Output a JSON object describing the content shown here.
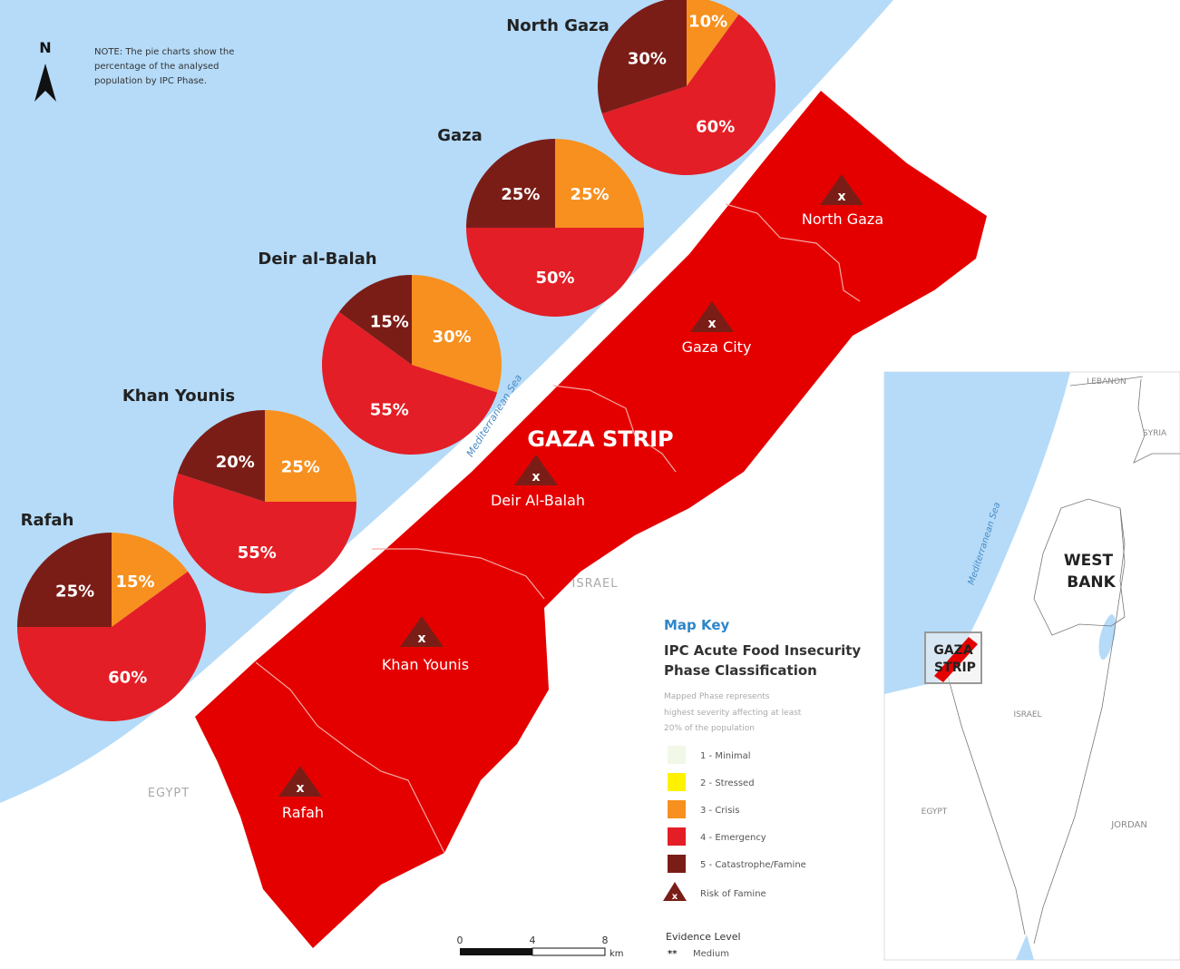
{
  "note_lines": [
    "NOTE: The pie charts show the",
    "percentage of the analysed",
    "population by IPC Phase."
  ],
  "north_label": "N",
  "sea_label": "Mediterranean Sea",
  "strip_title": "GAZA STRIP",
  "neighbors": {
    "egypt": "EGYPT",
    "israel": "ISRAEL"
  },
  "colors": {
    "sea": "#b5dbf9",
    "phase1": "#f2f8e8",
    "phase2": "#fff200",
    "phase3": "#f7901e",
    "phase4": "#e41e26",
    "phase5": "#7b1d17",
    "map_fill": "#e50000",
    "key_title": "#2e86c9"
  },
  "governorates": [
    {
      "name": "North Gaza",
      "label": "North Gaza",
      "risk_of_famine": true
    },
    {
      "name": "Gaza",
      "label": "Gaza City",
      "risk_of_famine": true
    },
    {
      "name": "Deir al-Balah",
      "label": "Deir Al-Balah",
      "risk_of_famine": true
    },
    {
      "name": "Khan Younis",
      "label": "Khan Younis",
      "risk_of_famine": true
    },
    {
      "name": "Rafah",
      "label": "Rafah",
      "risk_of_famine": true
    }
  ],
  "chart_data": [
    {
      "type": "pie",
      "title": "North Gaza",
      "categories": [
        "3 - Crisis",
        "4 - Emergency",
        "5 - Catastrophe/Famine"
      ],
      "values": [
        10,
        60,
        30
      ]
    },
    {
      "type": "pie",
      "title": "Gaza",
      "categories": [
        "3 - Crisis",
        "4 - Emergency",
        "5 - Catastrophe/Famine"
      ],
      "values": [
        25,
        50,
        25
      ]
    },
    {
      "type": "pie",
      "title": "Deir al-Balah",
      "categories": [
        "3 - Crisis",
        "4 - Emergency",
        "5 - Catastrophe/Famine"
      ],
      "values": [
        30,
        55,
        15
      ]
    },
    {
      "type": "pie",
      "title": "Khan Younis",
      "categories": [
        "3 - Crisis",
        "4 - Emergency",
        "5 - Catastrophe/Famine"
      ],
      "values": [
        25,
        55,
        20
      ]
    },
    {
      "type": "pie",
      "title": "Rafah",
      "categories": [
        "3 - Crisis",
        "4 - Emergency",
        "5 - Catastrophe/Famine"
      ],
      "values": [
        15,
        60,
        25
      ]
    }
  ],
  "legend": {
    "title": "Map Key",
    "heading_line1": "IPC Acute Food Insecurity",
    "heading_line2": "Phase Classification",
    "desc_lines": [
      "Mapped Phase represents",
      "highest severity affecting at least",
      "20% of the population"
    ],
    "items": [
      {
        "label": "1 - Minimal",
        "color": "#f2f8e8"
      },
      {
        "label": "2 - Stressed",
        "color": "#fff200"
      },
      {
        "label": "3 - Crisis",
        "color": "#f7901e"
      },
      {
        "label": "4 - Emergency",
        "color": "#e41e26"
      },
      {
        "label": "5 - Catastrophe/Famine",
        "color": "#7b1d17"
      }
    ],
    "risk_label": "Risk of Famine",
    "evidence_title": "Evidence Level",
    "evidence_marker": "**",
    "evidence_value": "Medium"
  },
  "scale": {
    "ticks": [
      "0",
      "4",
      "8"
    ],
    "unit": "km"
  },
  "inset": {
    "lebanon": "LEBANON",
    "syria": "SYRIA",
    "west_bank_1": "WEST",
    "west_bank_2": "BANK",
    "gaza_1": "GAZA",
    "gaza_2": "STRIP",
    "israel": "ISRAEL",
    "egypt": "EGYPT",
    "jordan": "JORDAN",
    "sea": "Mediterranean Sea"
  }
}
